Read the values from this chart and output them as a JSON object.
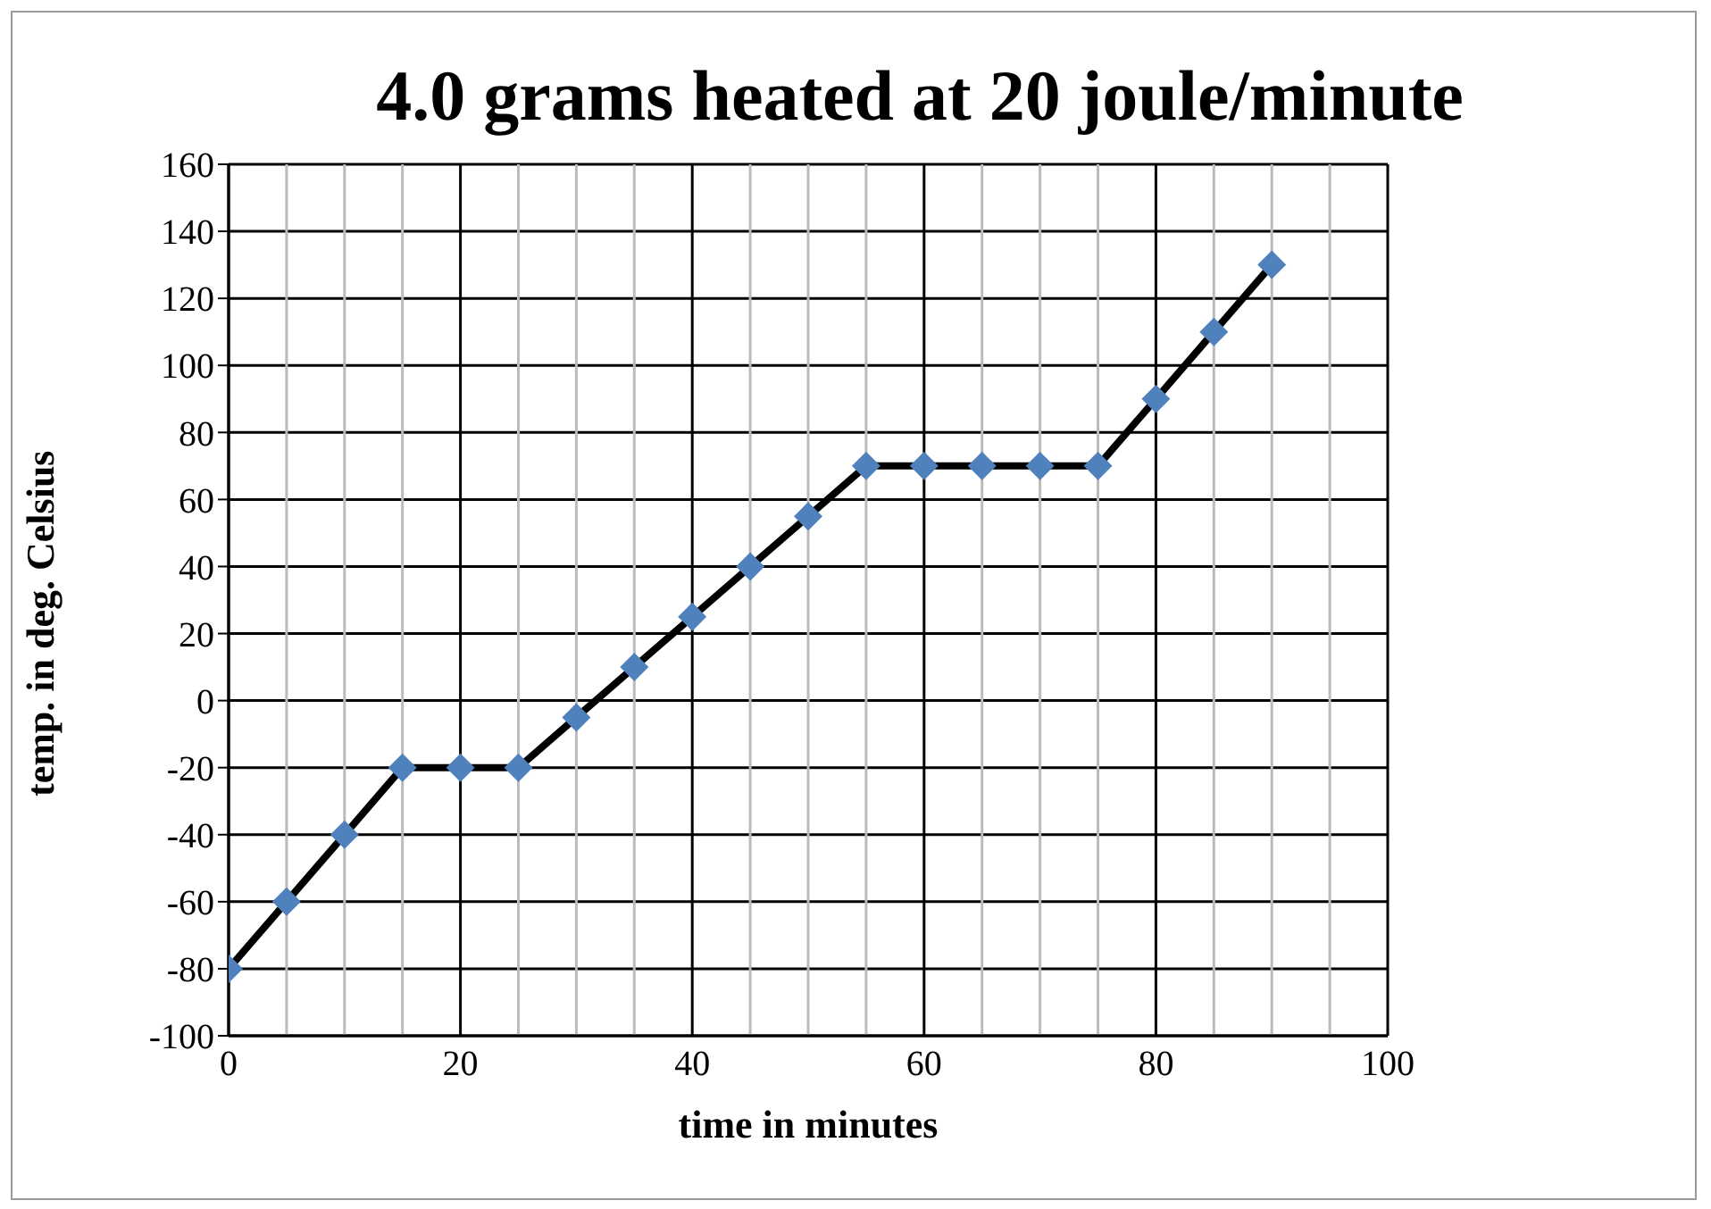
{
  "chart_data": {
    "type": "line",
    "title": "4.0 grams heated at 20 joule/minute",
    "xlabel": "time in minutes",
    "ylabel": "temp. in deg. Celsius",
    "x": [
      0,
      5,
      10,
      15,
      20,
      25,
      30,
      35,
      40,
      45,
      50,
      55,
      60,
      65,
      70,
      75,
      80,
      85,
      90
    ],
    "series": [
      {
        "color": "#000000",
        "colors": [
          "#4f81bd",
          "#4f81bd",
          "#4f81bd",
          "#4f81bd",
          "#4f81bd",
          "#4f81bd",
          "#4f81bd",
          "#4f81bd",
          "#4f81bd",
          "#4f81bd",
          "#4f81bd",
          "#4f81bd",
          "#4f81bd",
          "#4f81bd",
          "#4f81bd",
          "#4f81bd",
          "#4f81bd",
          "#4f81bd",
          "#4f81bd"
        ],
        "values": [
          -80,
          -60,
          -40,
          -20,
          -20,
          -20,
          -5,
          10,
          25,
          40,
          55,
          70,
          70,
          70,
          70,
          70,
          90,
          110,
          130
        ]
      }
    ],
    "xlim": [
      0,
      100
    ],
    "xticks": [
      0,
      20,
      40,
      60,
      80,
      100
    ],
    "ylim": [
      -100,
      160
    ],
    "yticks": [
      -100,
      -80,
      -60,
      -40,
      -20,
      0,
      20,
      40,
      60,
      80,
      100,
      120,
      140,
      160
    ],
    "grid": true,
    "marker": "diamond",
    "line_style": "solid"
  }
}
